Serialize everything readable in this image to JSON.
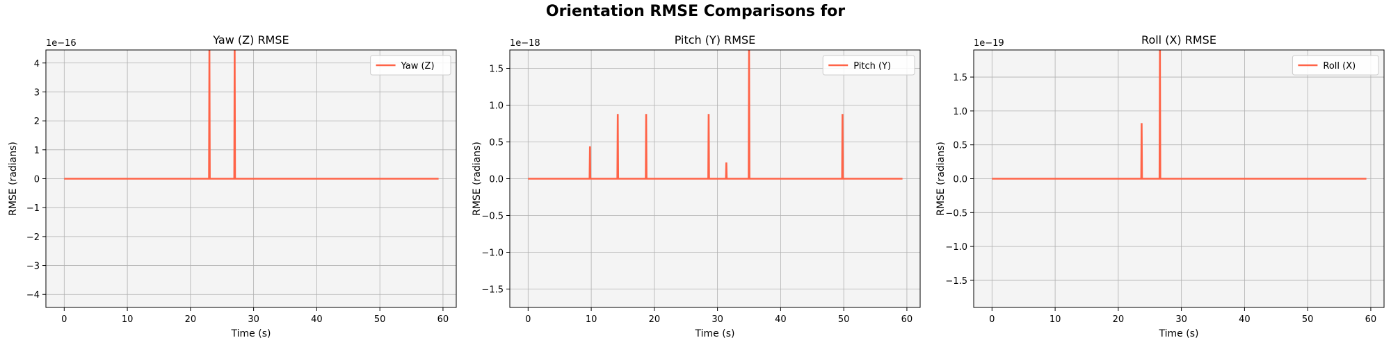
{
  "figure": {
    "title": "Orientation RMSE Comparisons for"
  },
  "colors": {
    "line": "#ff6347",
    "axes_bg": "#f4f4f4",
    "grid": "#b0b0b0"
  },
  "chart_data": [
    {
      "type": "line",
      "title": "Yaw (Z) RMSE",
      "xlabel": "Time (s)",
      "ylabel": "RMSE (radians)",
      "offset_text": "1e−16",
      "scale_exp": -16,
      "xlim": [
        -2.9,
        62.1
      ],
      "ylim": [
        -4.45,
        4.45
      ],
      "xticks": [
        0,
        10,
        20,
        30,
        40,
        50,
        60
      ],
      "yticks": [
        -4,
        -3,
        -2,
        -1,
        0,
        1,
        2,
        3,
        4
      ],
      "ytick_labels": [
        "−4",
        "−3",
        "−2",
        "−1",
        "0",
        "1",
        "2",
        "3",
        "4"
      ],
      "grid": true,
      "legend": {
        "position": "top-right",
        "label": "Yaw (Z)"
      },
      "series": [
        {
          "name": "Yaw (Z)",
          "baseline": 0,
          "x_range": [
            0,
            59.3
          ],
          "spikes": [
            {
              "x": 23.0,
              "y": 4.45
            },
            {
              "x": 27.0,
              "y": 4.45
            }
          ]
        }
      ]
    },
    {
      "type": "line",
      "title": "Pitch (Y) RMSE",
      "xlabel": "Time (s)",
      "ylabel": "RMSE (radians)",
      "offset_text": "1e−18",
      "scale_exp": -18,
      "xlim": [
        -2.9,
        62.1
      ],
      "ylim": [
        -1.75,
        1.75
      ],
      "xticks": [
        0,
        10,
        20,
        30,
        40,
        50,
        60
      ],
      "yticks": [
        -1.5,
        -1.0,
        -0.5,
        0.0,
        0.5,
        1.0,
        1.5
      ],
      "ytick_labels": [
        "−1.5",
        "−1.0",
        "−0.5",
        "0.0",
        "0.5",
        "1.0",
        "1.5"
      ],
      "grid": true,
      "legend": {
        "position": "top-right",
        "label": "Pitch (Y)"
      },
      "series": [
        {
          "name": "Pitch (Y)",
          "baseline": 0,
          "x_range": [
            0,
            59.3
          ],
          "spikes": [
            {
              "x": 9.8,
              "y": 0.44
            },
            {
              "x": 14.2,
              "y": 0.88
            },
            {
              "x": 18.7,
              "y": 0.88
            },
            {
              "x": 28.6,
              "y": 0.88
            },
            {
              "x": 31.4,
              "y": 0.22
            },
            {
              "x": 35.0,
              "y": 1.75
            },
            {
              "x": 49.8,
              "y": 0.88
            }
          ]
        }
      ]
    },
    {
      "type": "line",
      "title": "Roll (X) RMSE",
      "xlabel": "Time (s)",
      "ylabel": "RMSE (radians)",
      "offset_text": "1e−19",
      "scale_exp": -19,
      "xlim": [
        -2.9,
        62.1
      ],
      "ylim": [
        -1.9,
        1.9
      ],
      "xticks": [
        0,
        10,
        20,
        30,
        40,
        50,
        60
      ],
      "yticks": [
        -1.5,
        -1.0,
        -0.5,
        0.0,
        0.5,
        1.0,
        1.5
      ],
      "ytick_labels": [
        "−1.5",
        "−1.0",
        "−0.5",
        "0.0",
        "0.5",
        "1.0",
        "1.5"
      ],
      "grid": true,
      "legend": {
        "position": "top-right",
        "label": "Roll (X)"
      },
      "series": [
        {
          "name": "Roll (X)",
          "baseline": 0,
          "x_range": [
            0,
            59.3
          ],
          "spikes": [
            {
              "x": 23.7,
              "y": 0.82
            },
            {
              "x": 26.6,
              "y": 1.9
            }
          ]
        }
      ]
    }
  ]
}
